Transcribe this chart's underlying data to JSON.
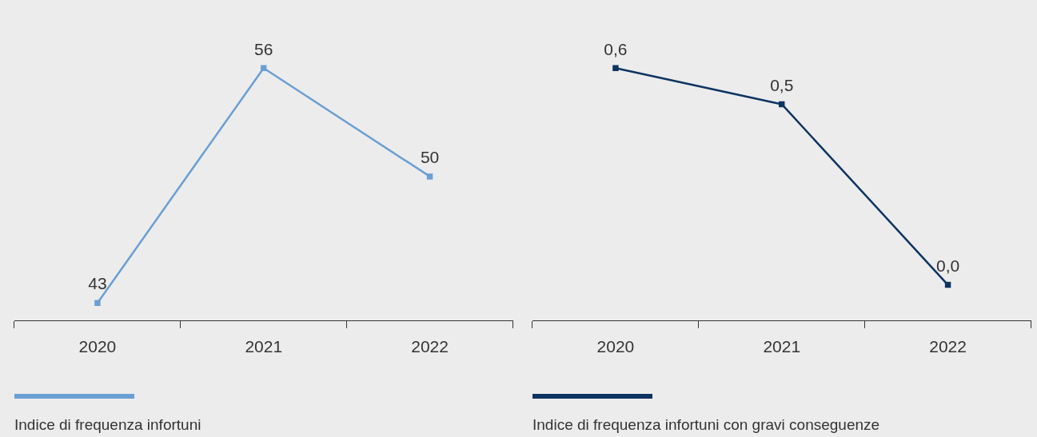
{
  "chart_data": [
    {
      "type": "line",
      "categories": [
        "2020",
        "2021",
        "2022"
      ],
      "series": [
        {
          "name": "Indice di frequenza infortuni",
          "color": "#6a9fd4",
          "values": [
            43,
            56,
            50
          ]
        }
      ],
      "data_labels": true,
      "marker": "square",
      "legend": "bottom",
      "grid": false,
      "tick_labels": "x"
    },
    {
      "type": "line",
      "categories": [
        "2020",
        "2021",
        "2022"
      ],
      "series": [
        {
          "name": "Indice di frequenza infortuni con gravi conseguenze",
          "color": "#0d3461",
          "values": [
            0.6,
            0.5,
            0.0
          ],
          "value_labels": [
            "0,6",
            "0,5",
            "0,0"
          ]
        }
      ],
      "marker": "square",
      "legend": "bottom",
      "grid": false,
      "tick_labels": "x"
    }
  ]
}
